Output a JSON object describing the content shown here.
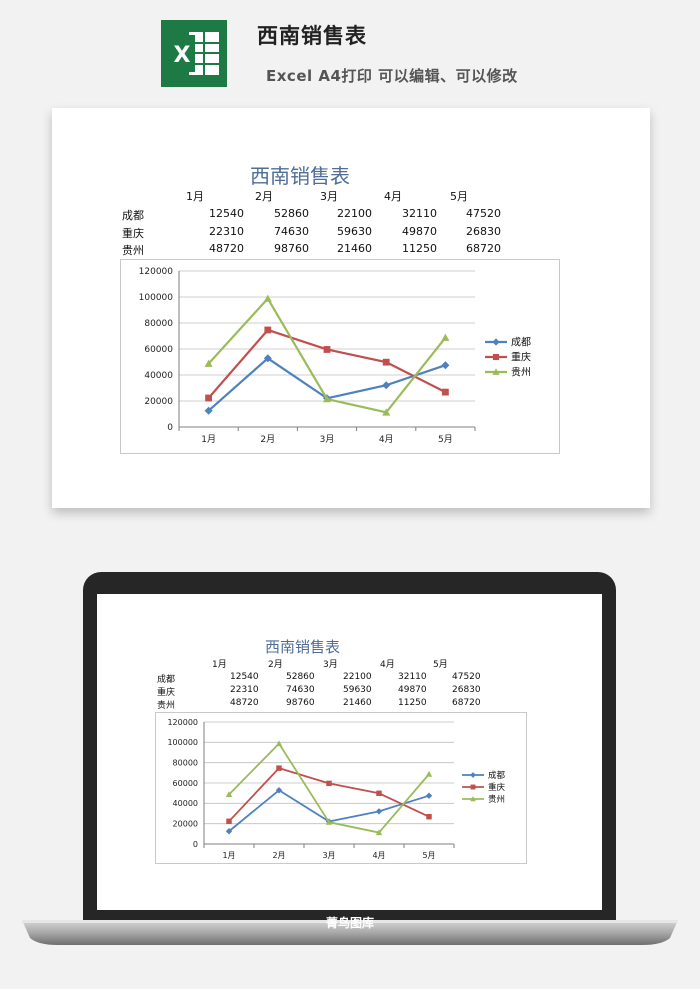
{
  "header": {
    "title": "西南销售表",
    "subtitle": "Excel A4打印 可以编辑、可以修改",
    "logo_letter": "X"
  },
  "sheet": {
    "title": "西南销售表",
    "months": [
      "1月",
      "2月",
      "3月",
      "4月",
      "5月"
    ],
    "rows": [
      {
        "name": "成都",
        "values": [
          "12540",
          "52860",
          "22100",
          "32110",
          "47520"
        ]
      },
      {
        "name": "重庆",
        "values": [
          "22310",
          "74630",
          "59630",
          "49870",
          "26830"
        ]
      },
      {
        "name": "贵州",
        "values": [
          "48720",
          "98760",
          "21460",
          "11250",
          "68720"
        ]
      }
    ]
  },
  "chart_data": {
    "type": "line",
    "categories": [
      "1月",
      "2月",
      "3月",
      "4月",
      "5月"
    ],
    "series": [
      {
        "name": "成都",
        "values": [
          12540,
          52860,
          22100,
          32110,
          47520
        ],
        "color": "#4f81bd",
        "marker": "diamond"
      },
      {
        "name": "重庆",
        "values": [
          22310,
          74630,
          59630,
          49870,
          26830
        ],
        "color": "#c0504d",
        "marker": "square"
      },
      {
        "name": "贵州",
        "values": [
          48720,
          98760,
          21460,
          11250,
          68720
        ],
        "color": "#9bbb59",
        "marker": "triangle"
      }
    ],
    "yticks": [
      "0",
      "20000",
      "40000",
      "60000",
      "80000",
      "100000",
      "120000"
    ],
    "ylim": [
      0,
      120000
    ],
    "grid": true,
    "legend": "right"
  },
  "footer": {
    "brand": "菁鸟图库"
  },
  "icons": {
    "logo": "excel-logo-icon"
  }
}
